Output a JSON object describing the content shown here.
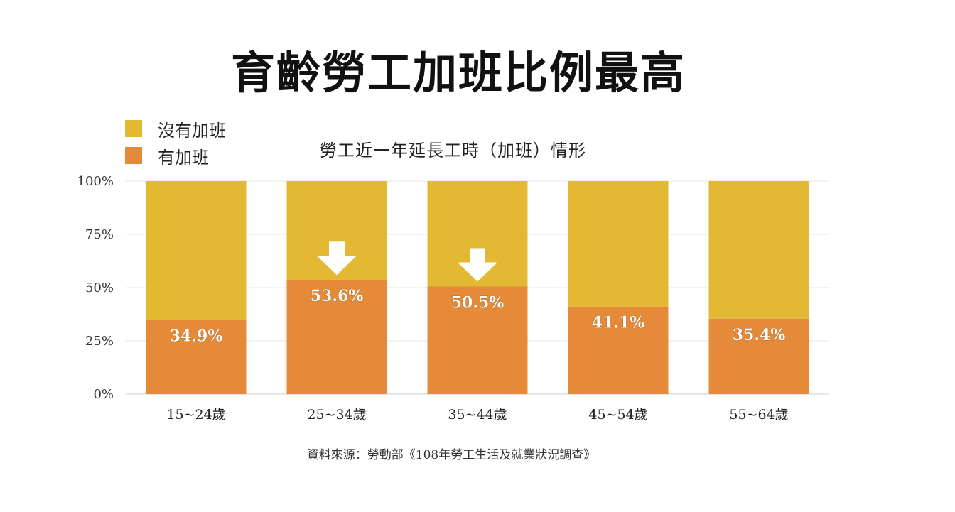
{
  "title": "育齡勞工加班比例最高",
  "source": "資料來源：勞動部《108年勞工生活及就業狀況調查》",
  "chart_data": {
    "type": "bar",
    "stacked": true,
    "title": "勞工近一年延長工時（加班）情形",
    "categories": [
      "15~24歲",
      "25~34歲",
      "35~44歲",
      "45~54歲",
      "55~64歲"
    ],
    "series": [
      {
        "name": "有加班",
        "color": "#e58a38",
        "values": [
          34.9,
          53.6,
          50.5,
          41.1,
          35.4
        ]
      },
      {
        "name": "沒有加班",
        "color": "#e3b934",
        "values": [
          65.1,
          46.4,
          49.5,
          58.9,
          64.6
        ]
      }
    ],
    "data_labels": [
      "34.9%",
      "53.6%",
      "50.5%",
      "41.1%",
      "35.4%"
    ],
    "highlight_arrows": [
      "25~34歲",
      "35~44歲"
    ],
    "yticks": [
      "0%",
      "25%",
      "50%",
      "75%",
      "100%"
    ],
    "ylim": [
      0,
      100
    ],
    "grid": true,
    "legend_position": "top-left"
  }
}
